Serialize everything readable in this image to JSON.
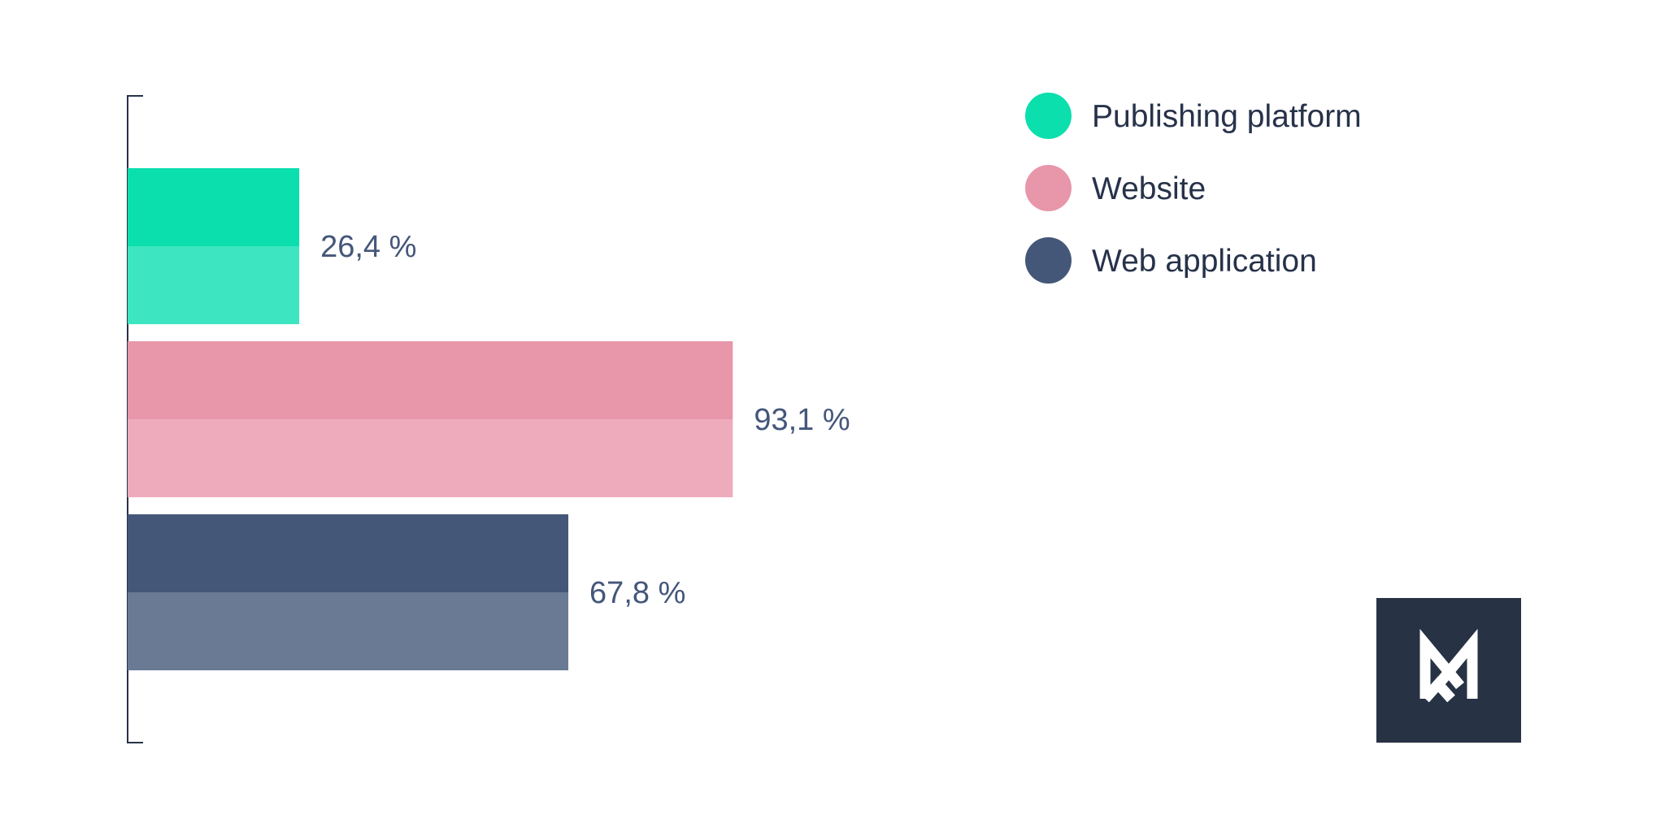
{
  "chart_data": {
    "type": "bar",
    "orientation": "horizontal",
    "categories": [
      "Publishing platform",
      "Website",
      "Web application"
    ],
    "values": [
      26.4,
      93.1,
      67.8
    ],
    "value_labels": [
      "26,4 %",
      "93,1 %",
      "67,8 %"
    ],
    "unit": "%",
    "xlim": [
      0,
      100
    ],
    "grid": false,
    "legend_position": "top-right",
    "legend": [
      {
        "label": "Publishing platform",
        "color": "#0adfad"
      },
      {
        "label": "Website",
        "color": "#e896aa"
      },
      {
        "label": "Web application",
        "color": "#445778"
      }
    ],
    "colors": [
      {
        "top": "#0adfad",
        "bottom": "#3de6c0"
      },
      {
        "top": "#e896aa",
        "bottom": "#eeabbc"
      },
      {
        "top": "#445778",
        "bottom": "#6a7a94"
      }
    ]
  },
  "logo": {
    "name": "brand-logo",
    "background": "#273244",
    "mark_color": "#ffffff"
  }
}
